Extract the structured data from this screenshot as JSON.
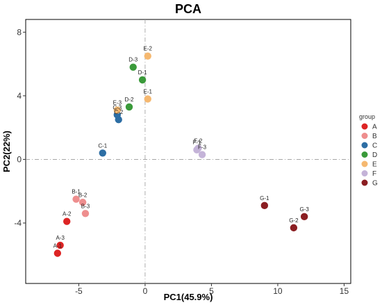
{
  "chart_data": {
    "type": "scatter",
    "title": "PCA",
    "xlabel": "PC1(45.9%)",
    "ylabel": "PC2(22%)",
    "xlim": [
      -9,
      15.5
    ],
    "ylim": [
      -7.8,
      8.8
    ],
    "xticks": [
      -5,
      0,
      5,
      10,
      15
    ],
    "yticks": [
      -4,
      0,
      4,
      8
    ],
    "reference_lines": {
      "x": 0,
      "y": 0,
      "style": "dash-dot"
    },
    "grid": false,
    "legend": {
      "title": "group",
      "position": "right"
    },
    "series": [
      {
        "name": "A",
        "color": "#dd2424",
        "points": [
          {
            "label": "A-1",
            "x": -6.6,
            "y": -5.9
          },
          {
            "label": "A-2",
            "x": -5.9,
            "y": -3.9
          },
          {
            "label": "A-3",
            "x": -6.4,
            "y": -5.4
          }
        ]
      },
      {
        "name": "B",
        "color": "#ee8e8e",
        "points": [
          {
            "label": "B-1",
            "x": -5.2,
            "y": -2.5
          },
          {
            "label": "B-2",
            "x": -4.7,
            "y": -2.7
          },
          {
            "label": "B-3",
            "x": -4.5,
            "y": -3.4
          }
        ]
      },
      {
        "name": "C",
        "color": "#2d6ea4",
        "points": [
          {
            "label": "C-1",
            "x": -3.2,
            "y": 0.4
          },
          {
            "label": "C-2",
            "x": -2.0,
            "y": 2.5
          },
          {
            "label": "C-3",
            "x": -2.1,
            "y": 2.8
          }
        ]
      },
      {
        "name": "D",
        "color": "#3a9a3a",
        "points": [
          {
            "label": "D-1",
            "x": -0.2,
            "y": 5.0
          },
          {
            "label": "D-2",
            "x": -1.2,
            "y": 3.3
          },
          {
            "label": "D-3",
            "x": -0.9,
            "y": 5.8
          }
        ]
      },
      {
        "name": "E",
        "color": "#f5b870",
        "points": [
          {
            "label": "E-1",
            "x": 0.2,
            "y": 3.8
          },
          {
            "label": "E-2",
            "x": 0.2,
            "y": 6.5
          },
          {
            "label": "E-3",
            "x": -2.1,
            "y": 3.1
          }
        ]
      },
      {
        "name": "F",
        "color": "#c4b3d8",
        "points": [
          {
            "label": "F-1",
            "x": 3.9,
            "y": 0.6
          },
          {
            "label": "F-2",
            "x": 4.0,
            "y": 0.7
          },
          {
            "label": "F-3",
            "x": 4.3,
            "y": 0.3
          }
        ]
      },
      {
        "name": "G",
        "color": "#8b1e22",
        "points": [
          {
            "label": "G-1",
            "x": 9.0,
            "y": -2.9
          },
          {
            "label": "G-2",
            "x": 11.2,
            "y": -4.3
          },
          {
            "label": "G-3",
            "x": 12.0,
            "y": -3.6
          }
        ]
      }
    ]
  }
}
